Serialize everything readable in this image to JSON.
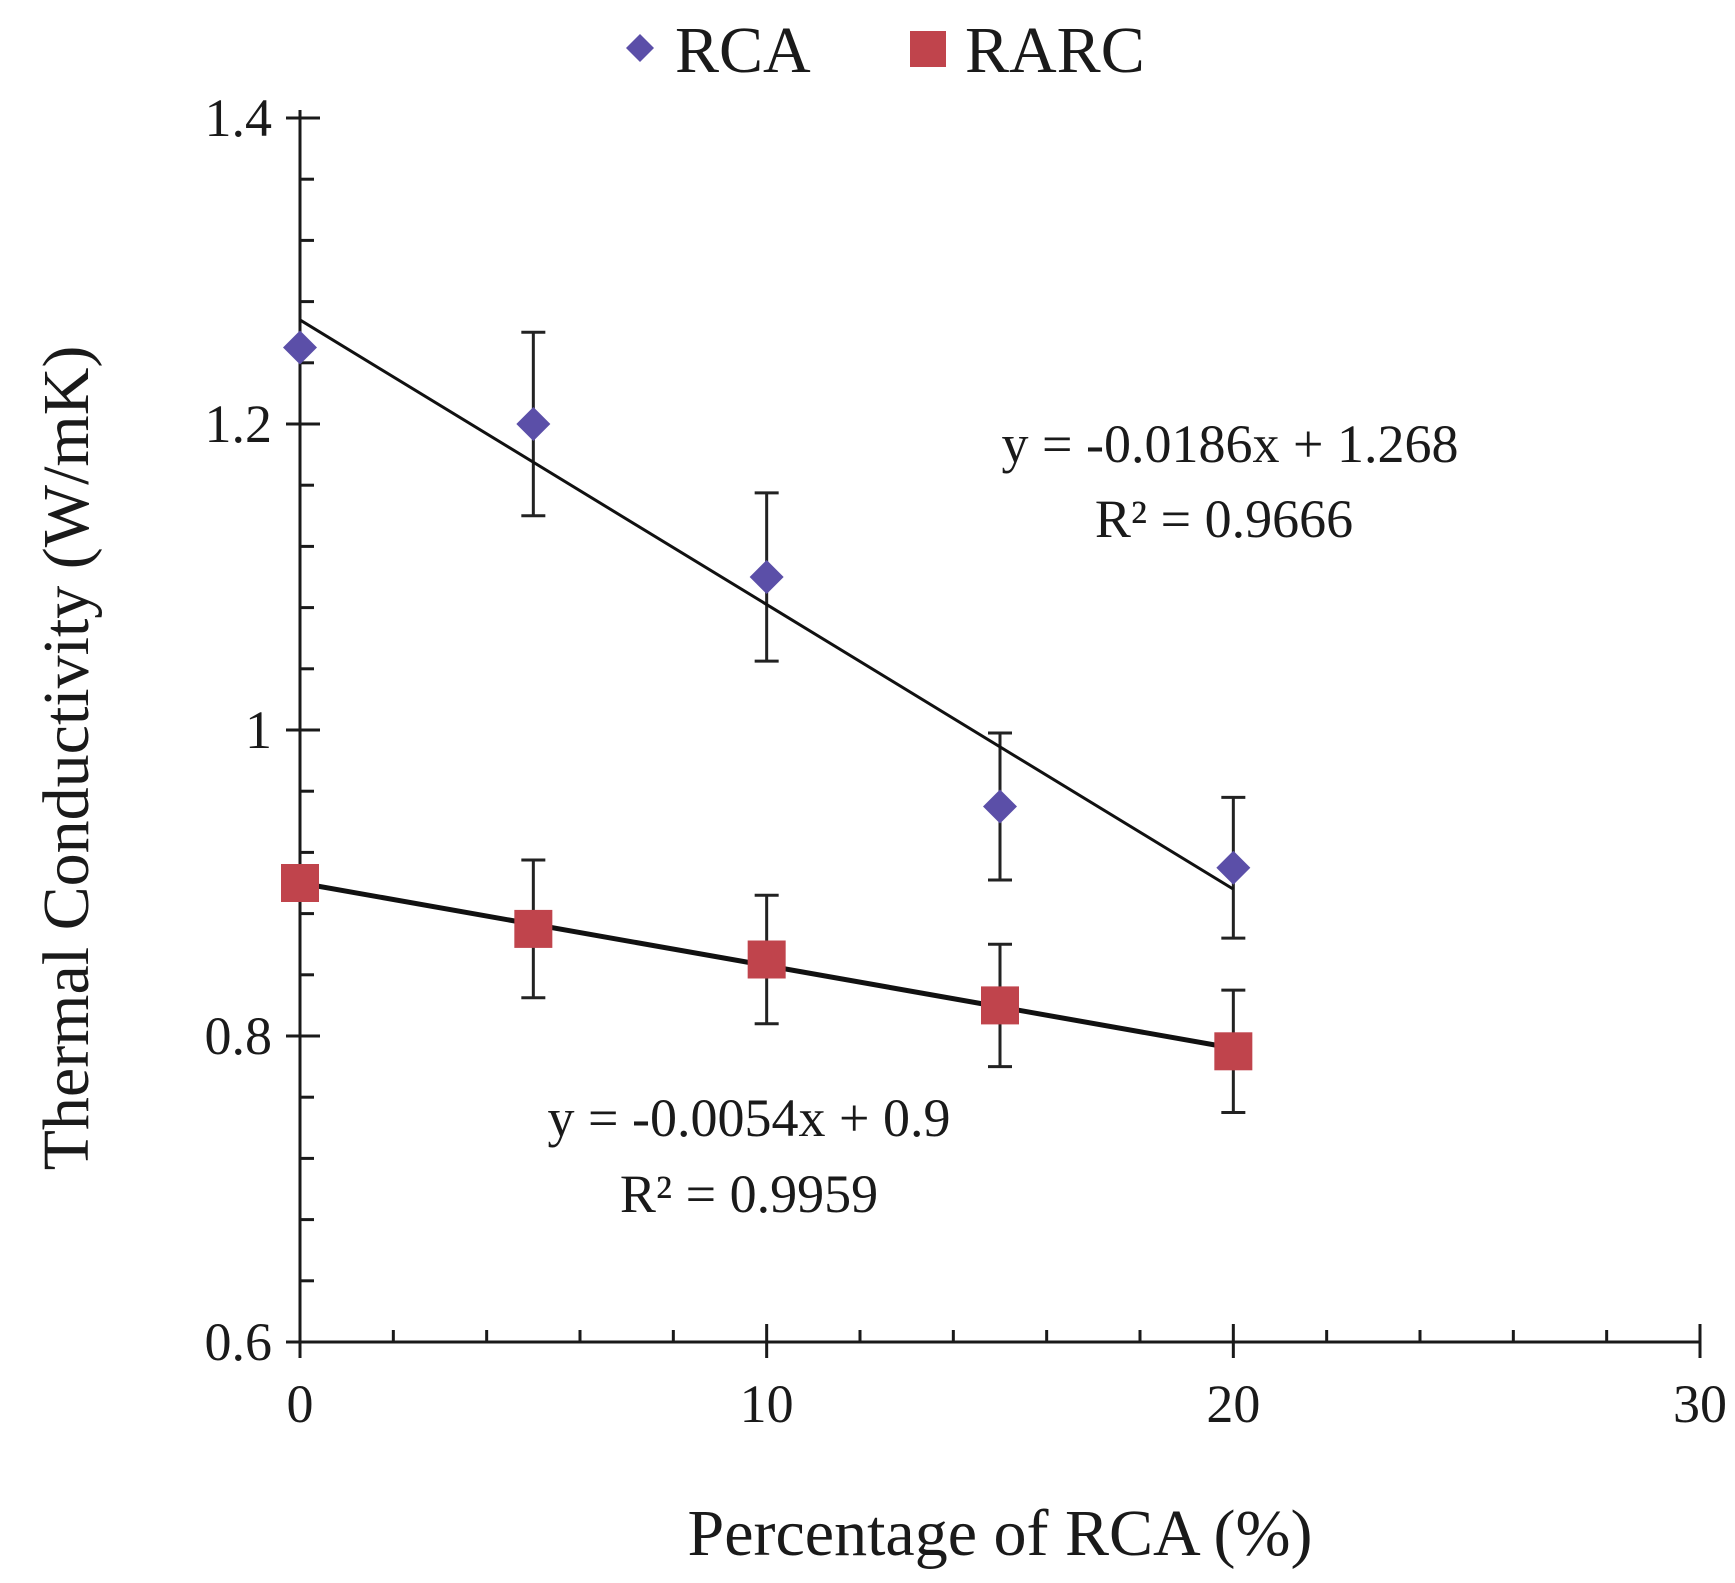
{
  "chart_data": {
    "type": "scatter",
    "title": "",
    "xlabel": "Percentage of RCA (%)",
    "ylabel": "Thermal Conductivity (W/mK)",
    "xlim": [
      0,
      30
    ],
    "ylim": [
      0.6,
      1.4
    ],
    "x_ticks": [
      0,
      10,
      20,
      30
    ],
    "x_tick_labels": [
      "0",
      "10",
      "20",
      "30"
    ],
    "y_ticks": [
      0.6,
      0.8,
      1.0,
      1.2,
      1.4
    ],
    "y_tick_labels": [
      "0.6",
      "0.8",
      "1",
      "1.2",
      "1.4"
    ],
    "x_minor_step": 2,
    "y_minor_step": 0.04,
    "grid": false,
    "legend_position": "top",
    "series": [
      {
        "name": "RCA",
        "marker": "diamond",
        "color": "#5b4fa8",
        "x": [
          0,
          5,
          10,
          15,
          20
        ],
        "y": [
          1.25,
          1.2,
          1.1,
          0.95,
          0.91
        ],
        "error": [
          0,
          0.06,
          0.055,
          0.048,
          0.046
        ],
        "trendline": {
          "slope": -0.0186,
          "intercept": 1.268,
          "x_range": [
            0,
            20
          ],
          "equation": "y = -0.0186x + 1.268",
          "r2": "R² = 0.9666"
        }
      },
      {
        "name": "RARC",
        "marker": "square",
        "color": "#c0444c",
        "x": [
          0,
          5,
          10,
          15,
          20
        ],
        "y": [
          0.9,
          0.87,
          0.85,
          0.82,
          0.79
        ],
        "error": [
          0,
          0.045,
          0.042,
          0.04,
          0.04
        ],
        "trendline": {
          "slope": -0.0054,
          "intercept": 0.9,
          "x_range": [
            0,
            20
          ],
          "equation": "y = -0.0054x + 0.9",
          "r2": "R² = 0.9959"
        }
      }
    ]
  }
}
